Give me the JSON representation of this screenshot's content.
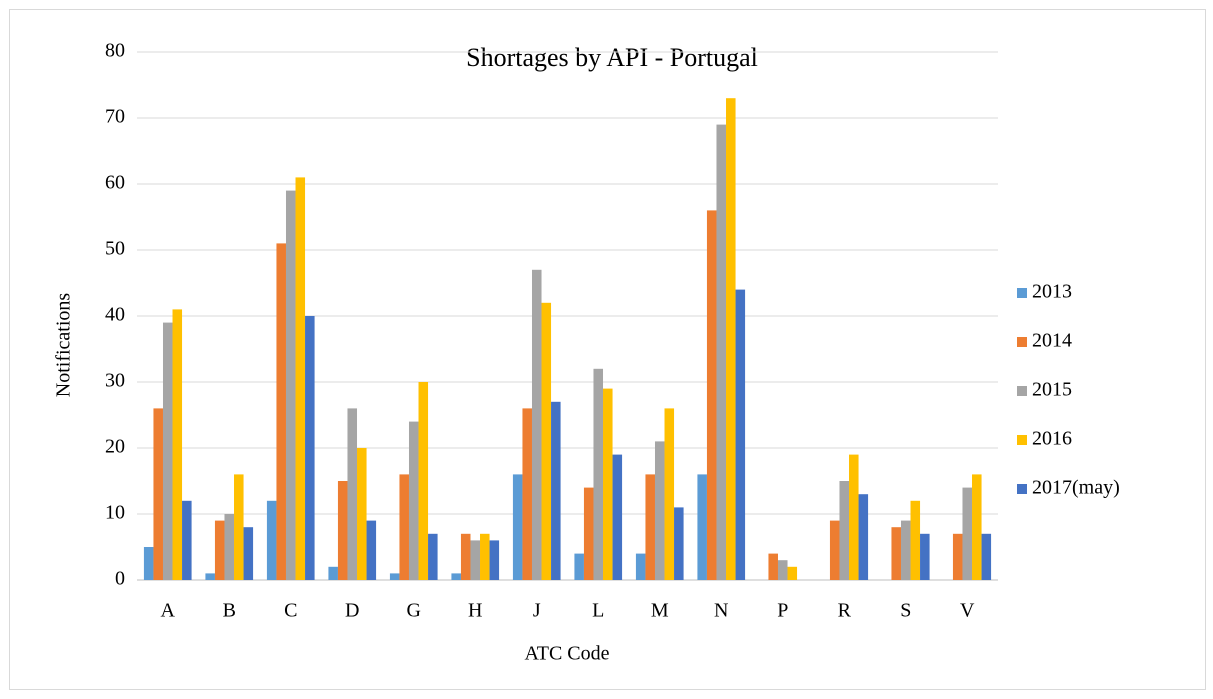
{
  "chart_data": {
    "type": "bar",
    "title": "Shortages by API - Portugal",
    "x_label": "ATC Code",
    "y_label": "Notifications",
    "categories": [
      "A",
      "B",
      "C",
      "D",
      "G",
      "H",
      "J",
      "L",
      "M",
      "N",
      "P",
      "R",
      "S",
      "V"
    ],
    "series": [
      {
        "name": "2013",
        "color": "#5b9bd5",
        "values": [
          5,
          1,
          12,
          2,
          1,
          1,
          16,
          4,
          4,
          16,
          0,
          0,
          0,
          0
        ]
      },
      {
        "name": "2014",
        "color": "#ed7d31",
        "values": [
          26,
          9,
          51,
          15,
          16,
          7,
          26,
          14,
          16,
          56,
          4,
          9,
          8,
          7
        ]
      },
      {
        "name": "2015",
        "color": "#a5a5a5",
        "values": [
          39,
          10,
          59,
          26,
          24,
          6,
          47,
          32,
          21,
          69,
          3,
          15,
          9,
          14
        ]
      },
      {
        "name": "2016",
        "color": "#ffc000",
        "values": [
          41,
          16,
          61,
          20,
          30,
          7,
          42,
          29,
          26,
          73,
          2,
          19,
          12,
          16
        ]
      },
      {
        "name": "2017(may)",
        "color": "#4472c4",
        "values": [
          12,
          8,
          40,
          9,
          7,
          6,
          27,
          19,
          11,
          44,
          0,
          13,
          7,
          7
        ]
      }
    ],
    "ylim": [
      0,
      80
    ],
    "yticks": [
      0,
      10,
      20,
      30,
      40,
      50,
      60,
      70,
      80
    ],
    "grid": true,
    "legend": "right"
  }
}
